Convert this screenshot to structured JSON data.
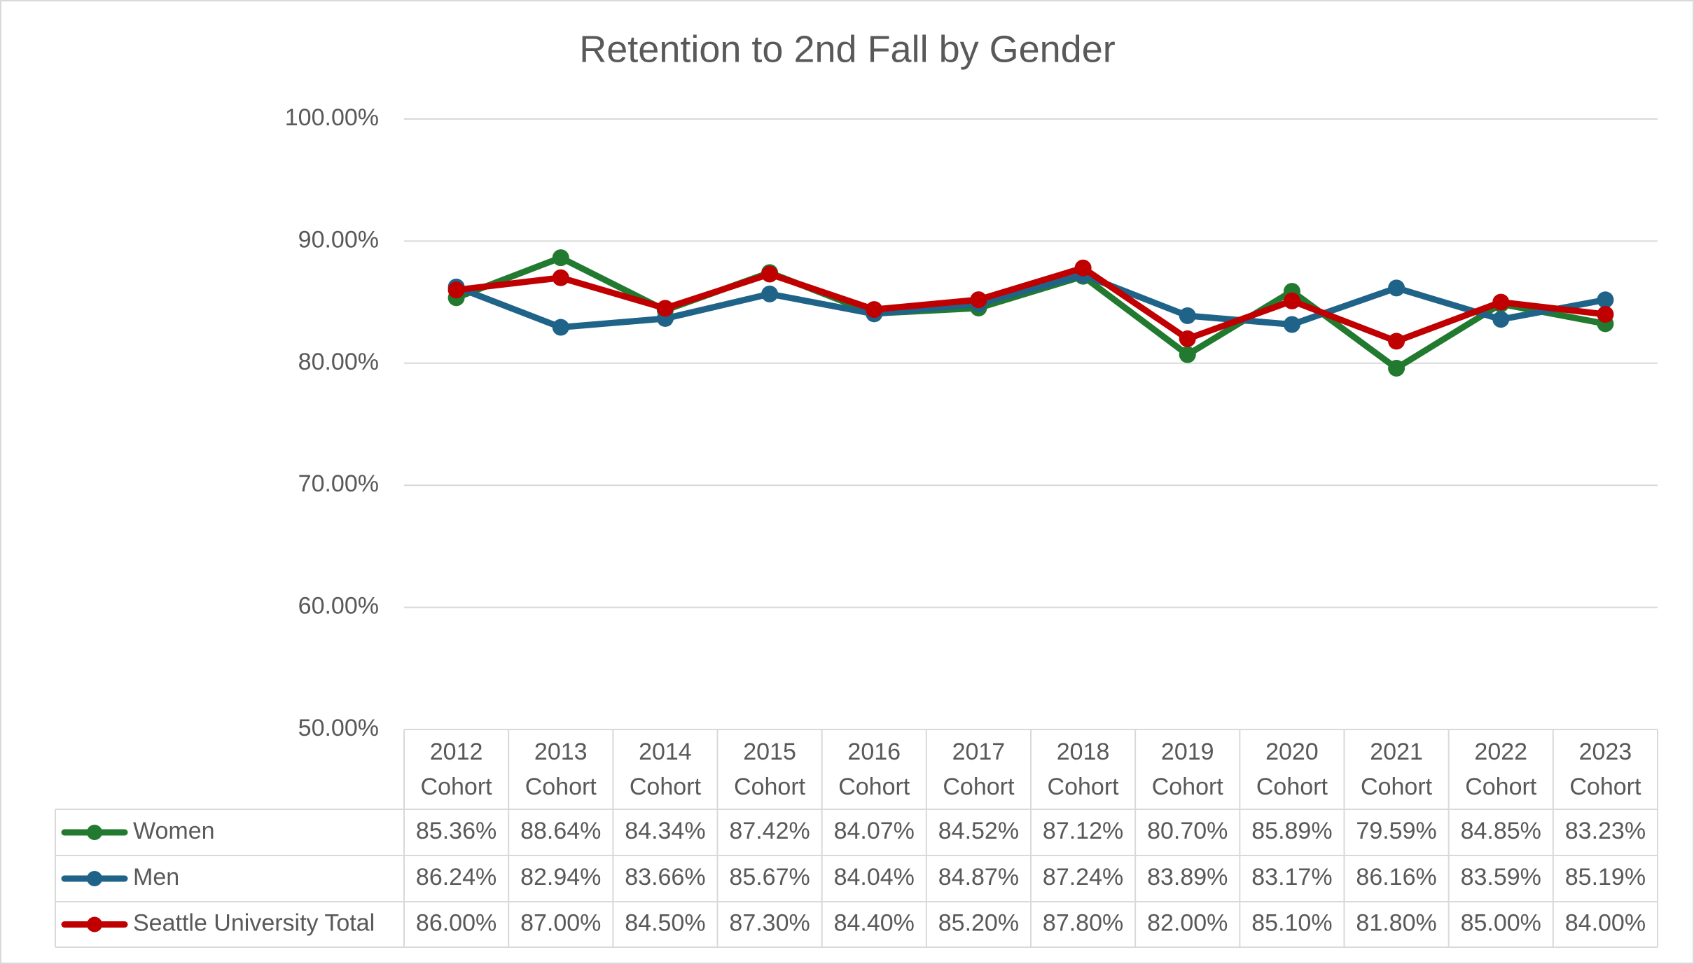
{
  "chart_data": {
    "type": "line",
    "title": "Retention to 2nd Fall by Gender",
    "categories": [
      "2012 Cohort",
      "2013 Cohort",
      "2014 Cohort",
      "2015 Cohort",
      "2016 Cohort",
      "2017 Cohort",
      "2018 Cohort",
      "2019 Cohort",
      "2020 Cohort",
      "2021 Cohort",
      "2022 Cohort",
      "2023 Cohort"
    ],
    "series": [
      {
        "name": "Women",
        "color": "#217a2f",
        "values": [
          85.36,
          88.64,
          84.34,
          87.42,
          84.07,
          84.52,
          87.12,
          80.7,
          85.89,
          79.59,
          84.85,
          83.23
        ],
        "value_labels": [
          "85.36%",
          "88.64%",
          "84.34%",
          "87.42%",
          "84.07%",
          "84.52%",
          "87.12%",
          "80.70%",
          "85.89%",
          "79.59%",
          "84.85%",
          "83.23%"
        ]
      },
      {
        "name": "Men",
        "color": "#1f6388",
        "values": [
          86.24,
          82.94,
          83.66,
          85.67,
          84.04,
          84.87,
          87.24,
          83.89,
          83.17,
          86.16,
          83.59,
          85.19
        ],
        "value_labels": [
          "86.24%",
          "82.94%",
          "83.66%",
          "85.67%",
          "84.04%",
          "84.87%",
          "87.24%",
          "83.89%",
          "83.17%",
          "86.16%",
          "83.59%",
          "85.19%"
        ]
      },
      {
        "name": "Seattle University Total",
        "color": "#c00000",
        "values": [
          86.0,
          87.0,
          84.5,
          87.3,
          84.4,
          85.2,
          87.8,
          82.0,
          85.1,
          81.8,
          85.0,
          84.0
        ],
        "value_labels": [
          "86.00%",
          "87.00%",
          "84.50%",
          "87.30%",
          "84.40%",
          "85.20%",
          "87.80%",
          "82.00%",
          "85.10%",
          "81.80%",
          "85.00%",
          "84.00%"
        ]
      }
    ],
    "ylim": [
      50,
      100
    ],
    "yticks": [
      {
        "value": 50,
        "label": "50.00%"
      },
      {
        "value": 60,
        "label": "60.00%"
      },
      {
        "value": 70,
        "label": "70.00%"
      },
      {
        "value": 80,
        "label": "80.00%"
      },
      {
        "value": 90,
        "label": "90.00%"
      },
      {
        "value": 100,
        "label": "100.00%"
      }
    ],
    "grid": true
  }
}
